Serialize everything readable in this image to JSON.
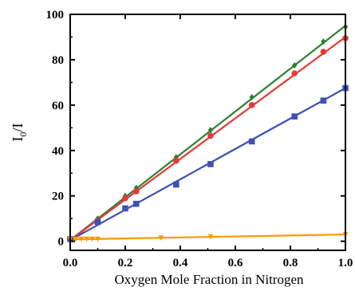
{
  "chart_data": {
    "type": "scatter",
    "title": "",
    "xlabel": "Oxygen Mole Fraction in Nitrogen",
    "ylabel": {
      "main": "I",
      "sub": "0",
      "rest": "/I"
    },
    "xlim": [
      0.0,
      1.0
    ],
    "ylim": [
      -4,
      100
    ],
    "x_ticks": [
      "0.0",
      "0.2",
      "0.4",
      "0.6",
      "0.8",
      "1.0"
    ],
    "y_ticks": [
      "0",
      "20",
      "40",
      "60",
      "80",
      "100"
    ],
    "grid": false,
    "legend": "none",
    "series": [
      {
        "color": "#2e7d32",
        "marker": "diamond",
        "x": [
          0.0,
          0.1,
          0.2,
          0.24,
          0.385,
          0.51,
          0.66,
          0.815,
          0.92,
          1.0
        ],
        "y": [
          1,
          10,
          20,
          23.5,
          37,
          49,
          63.5,
          77.5,
          88,
          94.5
        ],
        "fit": [
          [
            0.0,
            0.5
          ],
          [
            1.0,
            95
          ]
        ]
      },
      {
        "color": "#e53935",
        "marker": "circle",
        "x": [
          0.0,
          0.1,
          0.2,
          0.24,
          0.385,
          0.51,
          0.66,
          0.815,
          0.92,
          1.0
        ],
        "y": [
          1,
          9,
          19,
          22,
          35.5,
          46.5,
          60,
          74,
          83.5,
          89.5
        ],
        "fit": [
          [
            0.0,
            0.5
          ],
          [
            1.0,
            90
          ]
        ]
      },
      {
        "color": "#3f51b5",
        "marker": "square",
        "x": [
          0.0,
          0.1,
          0.2,
          0.24,
          0.385,
          0.51,
          0.66,
          0.815,
          0.92,
          1.0
        ],
        "y": [
          1,
          8.5,
          14.5,
          16.5,
          25,
          34,
          44,
          55,
          62,
          67.5
        ],
        "fit": [
          [
            0.0,
            0.5
          ],
          [
            1.0,
            67.5
          ]
        ]
      },
      {
        "color": "#ff9800",
        "marker": "triangle-down",
        "x": [
          0.0,
          0.02,
          0.04,
          0.06,
          0.08,
          0.1,
          0.33,
          0.51,
          1.0
        ],
        "y": [
          1,
          1,
          1,
          1,
          1,
          1,
          1.5,
          2,
          3
        ],
        "fit": [
          [
            0.0,
            0.8
          ],
          [
            1.0,
            3
          ]
        ]
      }
    ]
  }
}
